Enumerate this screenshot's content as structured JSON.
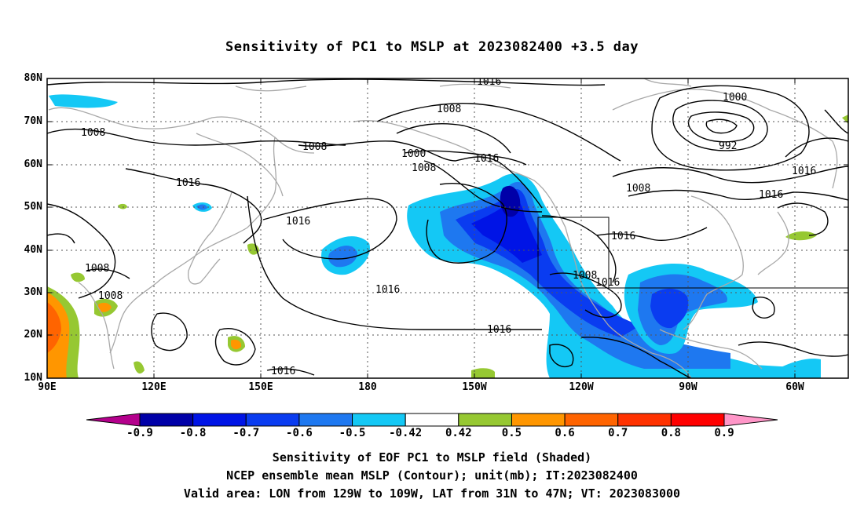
{
  "title": "Sensitivity of PC1 to MSLP at 2023082400 +3.5 day",
  "axes": {
    "lat_labels": [
      "80N",
      "70N",
      "60N",
      "50N",
      "40N",
      "30N",
      "20N",
      "10N"
    ],
    "lon_labels": [
      "90E",
      "120E",
      "150E",
      "180",
      "150W",
      "120W",
      "90W",
      "60W"
    ]
  },
  "contour_labels": [
    "1016",
    "1008",
    "1008",
    "1000",
    "1008",
    "1016",
    "1016",
    "1008",
    "1016",
    "1016",
    "1008",
    "1016",
    "1016",
    "1008",
    "1008",
    "1016",
    "1016",
    "1016",
    "1008",
    "1000",
    "992",
    "1016"
  ],
  "colorbar": {
    "labels": [
      "-0.9",
      "-0.8",
      "-0.7",
      "-0.6",
      "-0.5",
      "-0.42",
      "0.42",
      "0.5",
      "0.6",
      "0.7",
      "0.8",
      "0.9"
    ],
    "colors": [
      "#b4008c",
      "#0000a8",
      "#0014e6",
      "#0a3cf0",
      "#1e78f0",
      "#14c8f5",
      "#ffffff",
      "#96c832",
      "#ff9600",
      "#ff6400",
      "#ff3200",
      "#ff0000",
      "#ff96c8"
    ]
  },
  "captions": [
    "Sensitivity of EOF PC1 to MSLP field (Shaded)",
    "NCEP ensemble mean MSLP (Contour); unit(mb); IT:2023082400",
    "Valid area: LON from 129W to 109W, LAT from 31N to 47N; VT: 2023083000"
  ]
}
